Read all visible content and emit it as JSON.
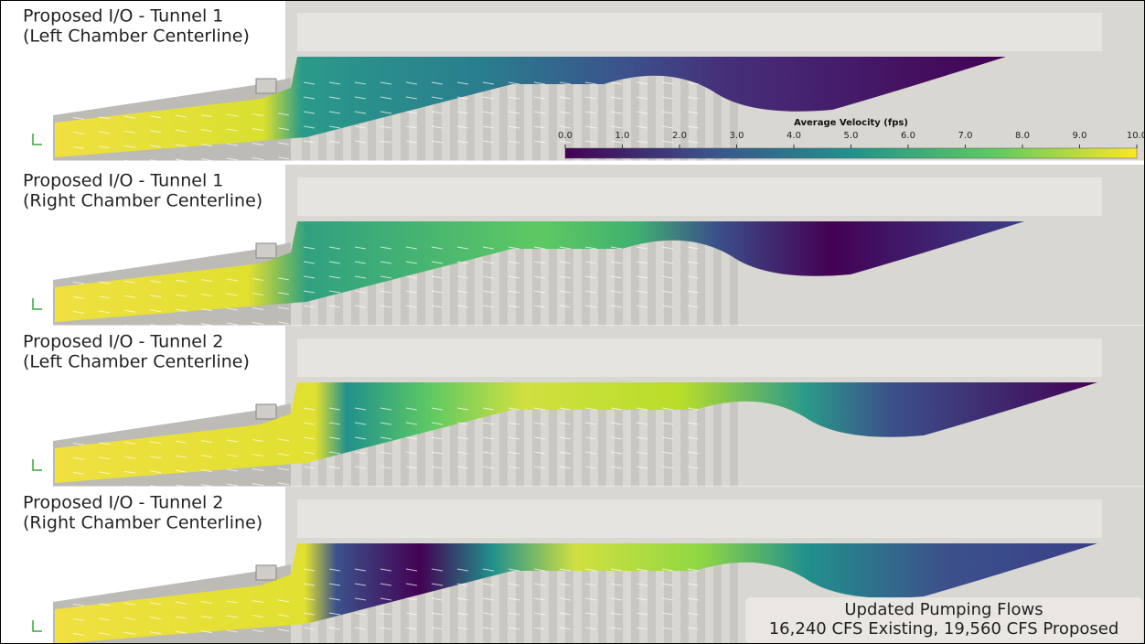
{
  "panels": [
    {
      "title": [
        "Proposed I/O - Tunnel 1",
        "(Left Chamber Centerline)"
      ]
    },
    {
      "title": [
        "Proposed I/O - Tunnel 1",
        "(Right Chamber Centerline)"
      ]
    },
    {
      "title": [
        "Proposed I/O - Tunnel 2",
        "(Left Chamber Centerline)"
      ]
    },
    {
      "title": [
        "Proposed I/O - Tunnel 2",
        "(Right Chamber Centerline)"
      ]
    }
  ],
  "colorbar": {
    "title": "Average Velocity (fps)",
    "range": [
      0,
      10
    ],
    "ticks": [
      {
        "value": 0,
        "label": "0.0"
      },
      {
        "value": 1,
        "label": "1.0"
      },
      {
        "value": 2,
        "label": "2.0"
      },
      {
        "value": 3,
        "label": "3.0"
      },
      {
        "value": 4,
        "label": "4.0"
      },
      {
        "value": 5,
        "label": "5.0"
      },
      {
        "value": 6,
        "label": "6.0"
      },
      {
        "value": 7,
        "label": "7.0"
      },
      {
        "value": 8,
        "label": "8.0"
      },
      {
        "value": 9,
        "label": "9.0"
      },
      {
        "value": 10,
        "label": "10.0"
      }
    ]
  },
  "note": [
    "Updated Pumping Flows",
    "16,240 CFS Existing, 19,560 CFS Proposed"
  ]
}
